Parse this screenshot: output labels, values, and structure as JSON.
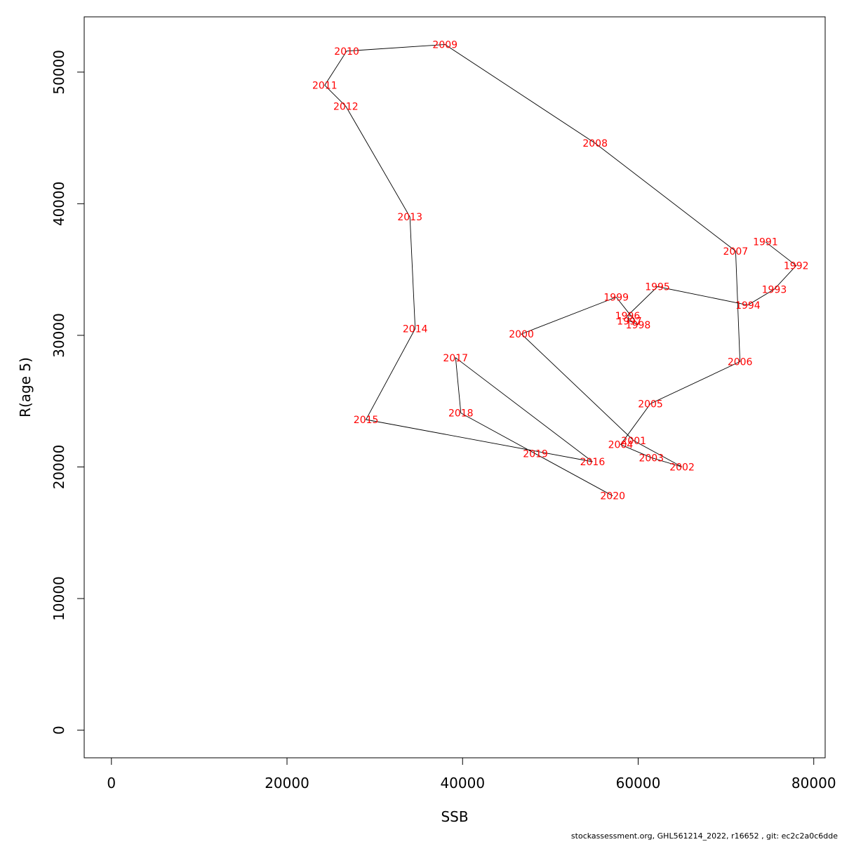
{
  "chart_data": {
    "type": "line",
    "title": "",
    "xlabel": "SSB",
    "ylabel": "R(age 5)",
    "xlim": [
      -3100,
      81300
    ],
    "ylim": [
      -2100,
      54200
    ],
    "xticks": [
      0,
      20000,
      40000,
      60000,
      80000
    ],
    "yticks": [
      0,
      10000,
      20000,
      30000,
      40000,
      50000
    ],
    "xtick_labels": [
      "0",
      "20000",
      "40000",
      "60000",
      "80000"
    ],
    "ytick_labels": [
      "0",
      "10000",
      "20000",
      "30000",
      "40000",
      "50000"
    ],
    "grid": false,
    "colors": {
      "line": "#000000",
      "labels": "#ff0000",
      "axes": "#000000"
    },
    "points": [
      {
        "year": "1991",
        "x": 74500,
        "y": 37100
      },
      {
        "year": "1992",
        "x": 78000,
        "y": 35300
      },
      {
        "year": "1993",
        "x": 75500,
        "y": 33500
      },
      {
        "year": "1994",
        "x": 72500,
        "y": 32300
      },
      {
        "year": "1995",
        "x": 62200,
        "y": 33700
      },
      {
        "year": "1996",
        "x": 58800,
        "y": 31500
      },
      {
        "year": "1997",
        "x": 59000,
        "y": 31100
      },
      {
        "year": "1998",
        "x": 60000,
        "y": 30800
      },
      {
        "year": "1999",
        "x": 57500,
        "y": 32900
      },
      {
        "year": "2000",
        "x": 46700,
        "y": 30100
      },
      {
        "year": "2001",
        "x": 59500,
        "y": 22000
      },
      {
        "year": "2002",
        "x": 65000,
        "y": 20000
      },
      {
        "year": "2003",
        "x": 61500,
        "y": 20700
      },
      {
        "year": "2004",
        "x": 58000,
        "y": 21700
      },
      {
        "year": "2005",
        "x": 61400,
        "y": 24800
      },
      {
        "year": "2006",
        "x": 71600,
        "y": 28000
      },
      {
        "year": "2007",
        "x": 71100,
        "y": 36400
      },
      {
        "year": "2008",
        "x": 55100,
        "y": 44600
      },
      {
        "year": "2009",
        "x": 38000,
        "y": 52100
      },
      {
        "year": "2010",
        "x": 26800,
        "y": 51600
      },
      {
        "year": "2011",
        "x": 24300,
        "y": 49000
      },
      {
        "year": "2012",
        "x": 26700,
        "y": 47400
      },
      {
        "year": "2013",
        "x": 34000,
        "y": 39000
      },
      {
        "year": "2014",
        "x": 34600,
        "y": 30500
      },
      {
        "year": "2015",
        "x": 29000,
        "y": 23600
      },
      {
        "year": "2016",
        "x": 54800,
        "y": 20400
      },
      {
        "year": "2017",
        "x": 39200,
        "y": 28300
      },
      {
        "year": "2018",
        "x": 39800,
        "y": 24100
      },
      {
        "year": "2019",
        "x": 48300,
        "y": 21000
      },
      {
        "year": "2020",
        "x": 57100,
        "y": 17800
      }
    ]
  },
  "footer": {
    "text": "stockassessment.org, GHL561214_2022, r16652 , git: ec2c2a0c6dde"
  }
}
